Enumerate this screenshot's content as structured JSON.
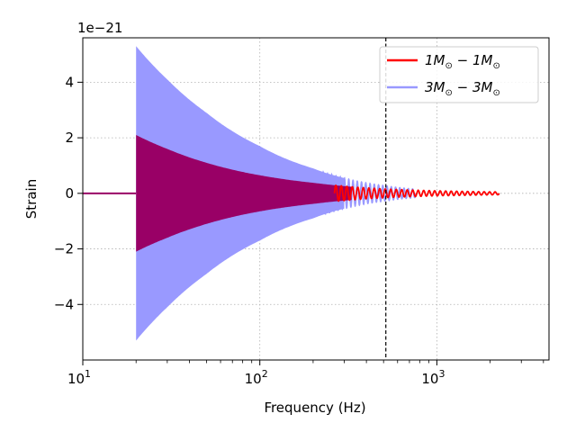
{
  "chart_data": {
    "type": "line",
    "title": "",
    "xlabel": "Frequency (Hz)",
    "ylabel": "Strain",
    "x_scale": "log",
    "xlim": [
      10,
      4300
    ],
    "ylim": [
      -6.0,
      5.6
    ],
    "y_offset_text": "1e−21",
    "x_ticks": [
      {
        "value": 10,
        "base": "10",
        "exp": "1"
      },
      {
        "value": 100,
        "base": "10",
        "exp": "2"
      },
      {
        "value": 1000,
        "base": "10",
        "exp": "3"
      }
    ],
    "y_ticks": [
      {
        "value": -4,
        "label": "−4"
      },
      {
        "value": -2,
        "label": "−2"
      },
      {
        "value": 0,
        "label": "0"
      },
      {
        "value": 2,
        "label": "2"
      },
      {
        "value": 4,
        "label": "4"
      }
    ],
    "grid": true,
    "vline_x": 515,
    "legend_position": "top-right",
    "series": [
      {
        "name": "3M⊙ − 3M⊙",
        "legend_a": "3",
        "legend_b": "3",
        "color": "#9999ff",
        "f_start": 20,
        "f_end": 760,
        "envelope": [
          [
            20,
            5.3
          ],
          [
            30,
            4.1
          ],
          [
            50,
            2.9
          ],
          [
            100,
            1.7
          ],
          [
            200,
            0.9
          ],
          [
            300,
            0.55
          ],
          [
            500,
            0.28
          ],
          [
            760,
            0.15
          ]
        ]
      },
      {
        "name": "1M⊙ − 1M⊙",
        "legend_a": "1",
        "legend_b": "1",
        "color": "#ff0000",
        "overlap_color": "#990066",
        "f_start": 20,
        "f_end": 2250,
        "envelope": [
          [
            20,
            2.1
          ],
          [
            30,
            1.6
          ],
          [
            50,
            1.1
          ],
          [
            100,
            0.65
          ],
          [
            200,
            0.38
          ],
          [
            300,
            0.26
          ],
          [
            500,
            0.16
          ],
          [
            1000,
            0.09
          ],
          [
            2250,
            0.05
          ]
        ]
      }
    ]
  }
}
